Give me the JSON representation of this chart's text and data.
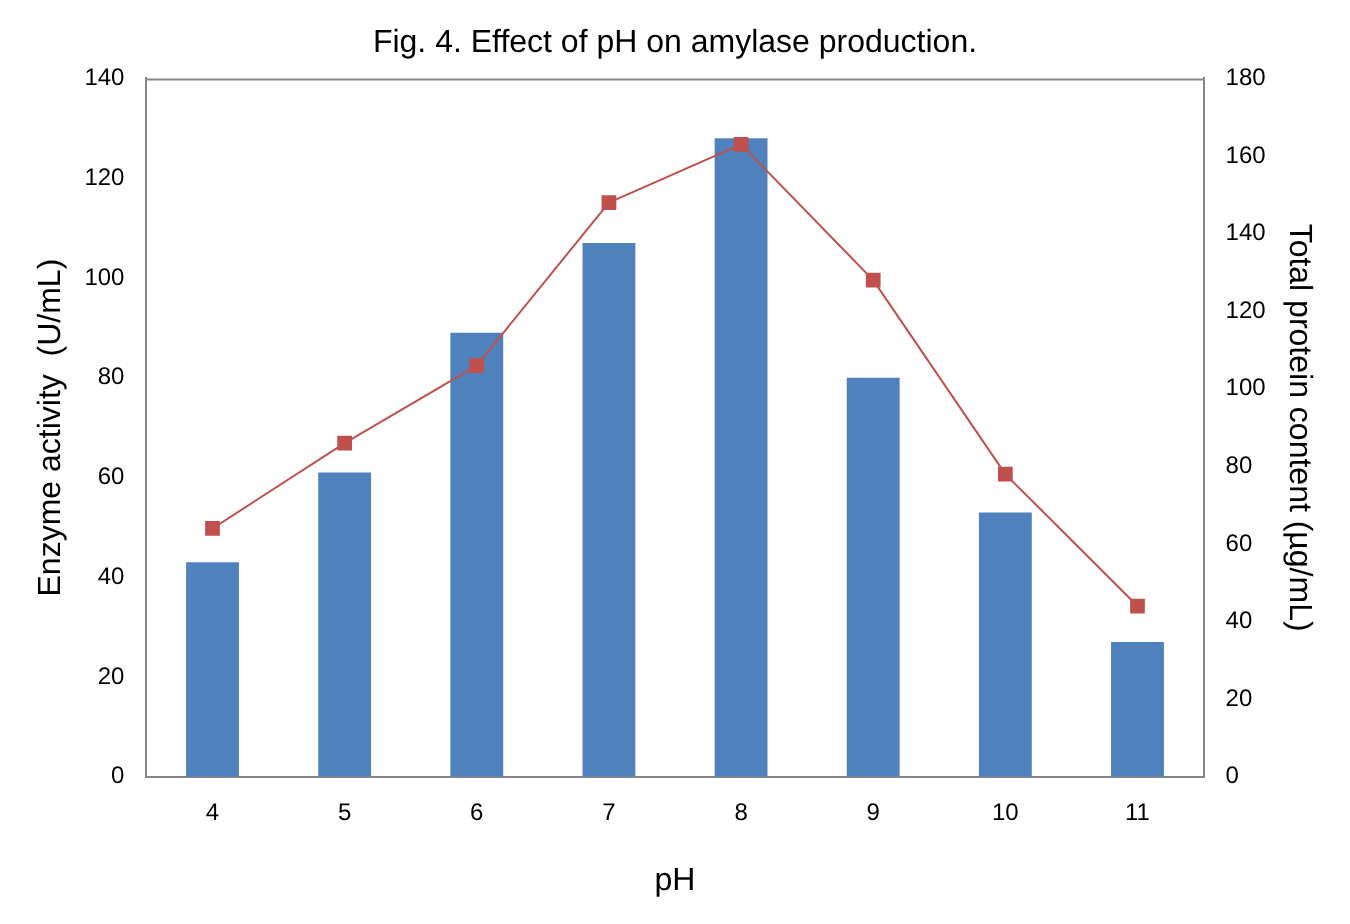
{
  "chart_data": {
    "type": "bar",
    "title": "Fig. 4. Effect of pH on amylase production.",
    "xlabel": "pH",
    "ylabel": "Enzyme activity  (U/mL)",
    "y2label": "Total protein content (µg/mL)",
    "categories": [
      "4",
      "5",
      "6",
      "7",
      "8",
      "9",
      "10",
      "11"
    ],
    "series": [
      {
        "color": "#4f81bd",
        "values": [
          43,
          61,
          89,
          107,
          128,
          80,
          53,
          27
        ]
      },
      {
        "type": "line",
        "axis": "y2",
        "color": "#c0504d",
        "marker": "square",
        "line_style": "solid",
        "values": [
          64,
          86,
          106,
          148,
          163,
          128,
          78,
          44
        ]
      }
    ],
    "ylim": [
      0,
      140
    ],
    "yticks": [
      0,
      20,
      40,
      60,
      80,
      100,
      120,
      140
    ],
    "y2lim": [
      0,
      180
    ],
    "y2ticks": [
      0,
      20,
      40,
      60,
      80,
      100,
      120,
      140,
      160,
      180
    ],
    "grid": false,
    "legend": false
  }
}
